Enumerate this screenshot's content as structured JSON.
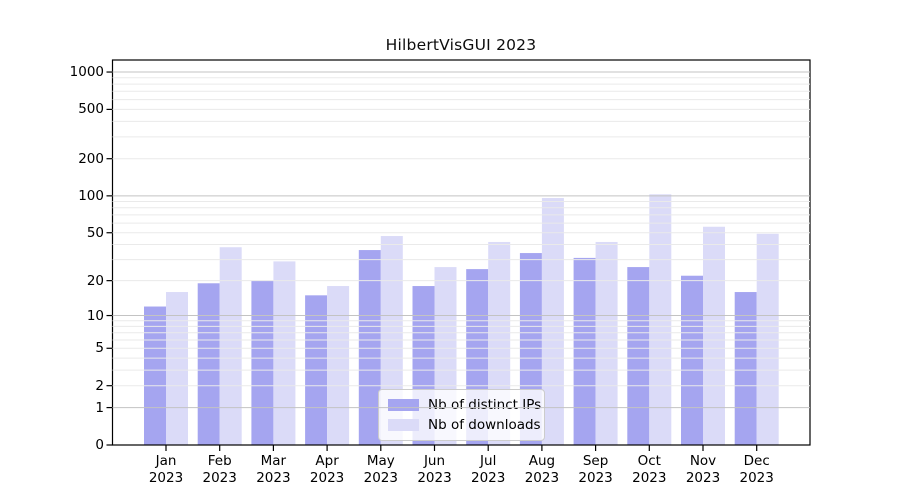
{
  "chart_data": {
    "type": "bar",
    "title": "HilbertVisGUI 2023",
    "categories": [
      "Jan",
      "Feb",
      "Mar",
      "Apr",
      "May",
      "Jun",
      "Jul",
      "Aug",
      "Sep",
      "Oct",
      "Nov",
      "Dec"
    ],
    "category_year": "2023",
    "series": [
      {
        "name": "Nb of distinct IPs",
        "color": "#a5a5f0",
        "values": [
          12,
          19,
          20,
          15,
          36,
          18,
          25,
          34,
          31,
          26,
          22,
          16
        ]
      },
      {
        "name": "Nb of downloads",
        "color": "#dbdbf8",
        "values": [
          16,
          38,
          29,
          18,
          47,
          26,
          42,
          96,
          42,
          103,
          56,
          49
        ]
      }
    ],
    "y_ticks": [
      0,
      1,
      2,
      5,
      10,
      20,
      50,
      100,
      200,
      500,
      1000
    ],
    "y_scale": "log10(1+x)",
    "ylim": [
      0,
      1250
    ],
    "grid": true,
    "gridline_color_major": "#c3c3c3",
    "gridline_color_minor": "#eaeaea",
    "frame_color": "#000000",
    "legend_position": "bottom-center"
  }
}
